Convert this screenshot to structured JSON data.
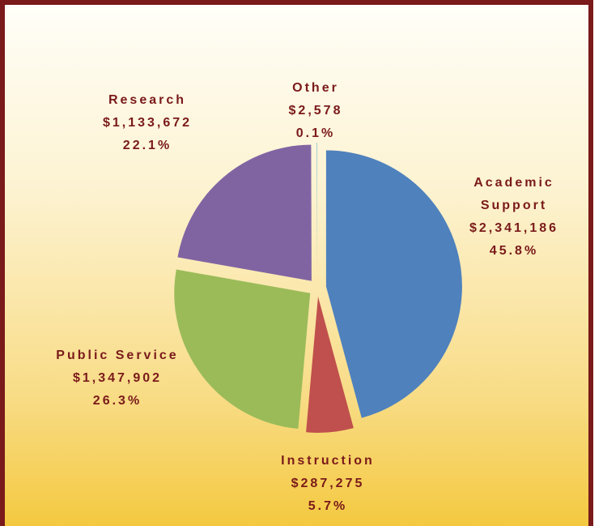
{
  "chart_data": {
    "type": "pie",
    "categories": [
      "Academic Support",
      "Instruction",
      "Public Service",
      "Research",
      "Other"
    ],
    "values": [
      2341186,
      287275,
      1347902,
      1133672,
      2578
    ],
    "value_labels": [
      "$2,341,186",
      "$287,275",
      "$1,347,902",
      "$1,133,672",
      "$2,578"
    ],
    "percent_labels": [
      "45.8%",
      "5.7%",
      "26.3%",
      "22.1%",
      "0.1%"
    ],
    "colors": [
      "#4f81bd",
      "#c0504d",
      "#9bbb59",
      "#8064a2",
      "#4bacc6"
    ]
  }
}
